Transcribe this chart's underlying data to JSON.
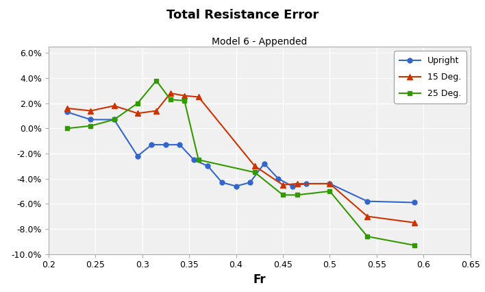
{
  "title": "Total Resistance Error",
  "subtitle": "Model 6 - Appended",
  "xlabel": "Fr",
  "xlim": [
    0.2,
    0.65
  ],
  "ylim": [
    -0.1,
    0.065
  ],
  "yticks": [
    -0.1,
    -0.08,
    -0.06,
    -0.04,
    -0.02,
    0.0,
    0.02,
    0.04,
    0.06
  ],
  "xticks": [
    0.2,
    0.25,
    0.3,
    0.35,
    0.4,
    0.45,
    0.5,
    0.55,
    0.6,
    0.65
  ],
  "upright_x": [
    0.22,
    0.245,
    0.27,
    0.295,
    0.31,
    0.325,
    0.34,
    0.355,
    0.37,
    0.385,
    0.4,
    0.415,
    0.43,
    0.445,
    0.46,
    0.475,
    0.5,
    0.54,
    0.59
  ],
  "upright_y": [
    0.013,
    0.007,
    0.007,
    -0.022,
    -0.013,
    -0.013,
    -0.013,
    -0.025,
    -0.03,
    -0.043,
    -0.046,
    -0.043,
    -0.028,
    -0.04,
    -0.046,
    -0.044,
    -0.044,
    -0.058,
    -0.059
  ],
  "deg15_x": [
    0.22,
    0.245,
    0.27,
    0.295,
    0.315,
    0.33,
    0.345,
    0.36,
    0.42,
    0.45,
    0.465,
    0.5,
    0.54,
    0.59
  ],
  "deg15_y": [
    0.016,
    0.014,
    0.018,
    0.012,
    0.014,
    0.028,
    0.026,
    0.025,
    -0.03,
    -0.045,
    -0.044,
    -0.044,
    -0.07,
    -0.075
  ],
  "deg25_x": [
    0.22,
    0.245,
    0.27,
    0.295,
    0.315,
    0.33,
    0.345,
    0.36,
    0.42,
    0.45,
    0.465,
    0.5,
    0.54,
    0.59
  ],
  "deg25_y": [
    0.0,
    0.002,
    0.007,
    0.02,
    0.038,
    0.023,
    0.022,
    -0.025,
    -0.035,
    -0.053,
    -0.053,
    -0.05,
    -0.086,
    -0.093
  ],
  "upright_color": "#3366cc",
  "deg15_color": "#cc3300",
  "deg25_color": "#339900",
  "plot_bg": "#f0f0f0",
  "fig_bg": "#ffffff",
  "grid_color": "#ffffff"
}
